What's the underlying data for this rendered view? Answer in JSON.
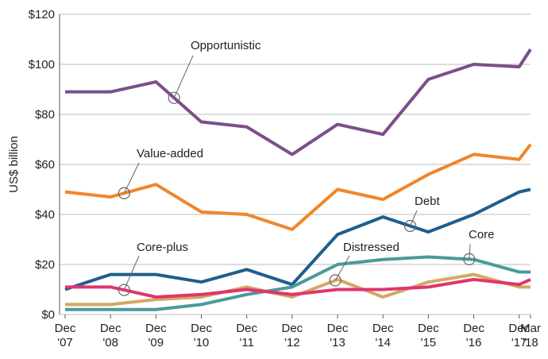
{
  "chart_data": {
    "type": "line",
    "y_label": "US$ billion",
    "x": [
      "2007-12",
      "2008-12",
      "2009-12",
      "2010-12",
      "2011-12",
      "2012-12",
      "2013-12",
      "2014-12",
      "2015-12",
      "2016-12",
      "2017-12",
      "2018-03"
    ],
    "xticks": [
      {
        "value": "2007-12",
        "label": "Dec '07"
      },
      {
        "value": "2008-12",
        "label": "Dec '08"
      },
      {
        "value": "2009-12",
        "label": "Dec '09"
      },
      {
        "value": "2010-12",
        "label": "Dec '10"
      },
      {
        "value": "2011-12",
        "label": "Dec '11"
      },
      {
        "value": "2012-12",
        "label": "Dec '12"
      },
      {
        "value": "2013-12",
        "label": "Dec '13"
      },
      {
        "value": "2014-12",
        "label": "Dec '14"
      },
      {
        "value": "2015-12",
        "label": "Dec '15"
      },
      {
        "value": "2016-12",
        "label": "Dec '16"
      },
      {
        "value": "2017-12",
        "label": "Dec '17"
      },
      {
        "value": "2018-03",
        "label": "Mar '18"
      }
    ],
    "ylim": [
      0,
      120
    ],
    "yticks": [
      {
        "value": 0,
        "label": "$0"
      },
      {
        "value": 20,
        "label": "$20"
      },
      {
        "value": 40,
        "label": "$40"
      },
      {
        "value": 60,
        "label": "$60"
      },
      {
        "value": 80,
        "label": "$80"
      },
      {
        "value": 100,
        "label": "$100"
      },
      {
        "value": 120,
        "label": "$120"
      }
    ],
    "grid": true,
    "series": [
      {
        "name": "Opportunistic",
        "color": "#7b4f8a",
        "values": [
          89,
          89,
          93,
          77,
          75,
          64,
          76,
          72,
          94,
          100,
          99,
          106
        ]
      },
      {
        "name": "Value-added",
        "color": "#f0862a",
        "values": [
          49,
          47,
          52,
          41,
          40,
          34,
          50,
          46,
          56,
          64,
          62,
          68
        ]
      },
      {
        "name": "Debt",
        "color": "#1f5f8b",
        "values": [
          10,
          16,
          16,
          13,
          18,
          12,
          32,
          39,
          33,
          40,
          49,
          50
        ]
      },
      {
        "name": "Core",
        "color": "#4a9a9a",
        "values": [
          2,
          2,
          2,
          4,
          8,
          11,
          20,
          22,
          23,
          22,
          17,
          17
        ]
      },
      {
        "name": "Distressed",
        "color": "#d4a862",
        "values": [
          4,
          4,
          6,
          7,
          11,
          7,
          14,
          7,
          13,
          16,
          11,
          11
        ]
      },
      {
        "name": "Core-plus",
        "color": "#e0356e",
        "values": [
          11,
          11,
          7,
          8,
          10,
          8,
          10,
          10,
          11,
          14,
          12,
          14
        ]
      }
    ]
  }
}
